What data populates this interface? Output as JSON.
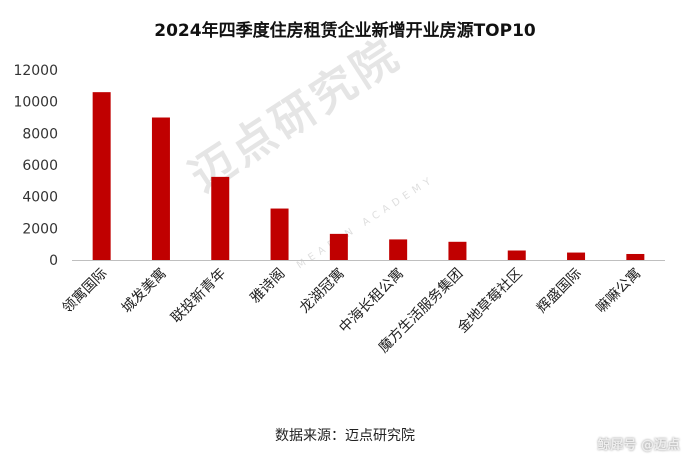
{
  "chart_data": {
    "type": "bar",
    "title": "2024年四季度住房租赁企业新增开业房源TOP10",
    "categories": [
      "领寓国际",
      "城发美寓",
      "联投新青年",
      "雅诗阁",
      "龙湖冠寓",
      "中海长租公寓",
      "魔方生活服务集团",
      "金地草莓社区",
      "辉盛国际",
      "嘛嘛公寓"
    ],
    "values": [
      10600,
      9000,
      5250,
      3250,
      1650,
      1300,
      1150,
      600,
      470,
      380
    ],
    "ylim": [
      0,
      12000
    ],
    "yticks": [
      0,
      2000,
      4000,
      6000,
      8000,
      10000,
      12000
    ],
    "xlabel": "",
    "ylabel": "",
    "grid": false,
    "bar_color": "#C00000"
  },
  "watermark": {
    "text": "迈点研究院",
    "sub": "MEADIN ACADEMY"
  },
  "source_note": "数据来源：迈点研究院",
  "corner_brand": "鲸犀号 @迈点"
}
